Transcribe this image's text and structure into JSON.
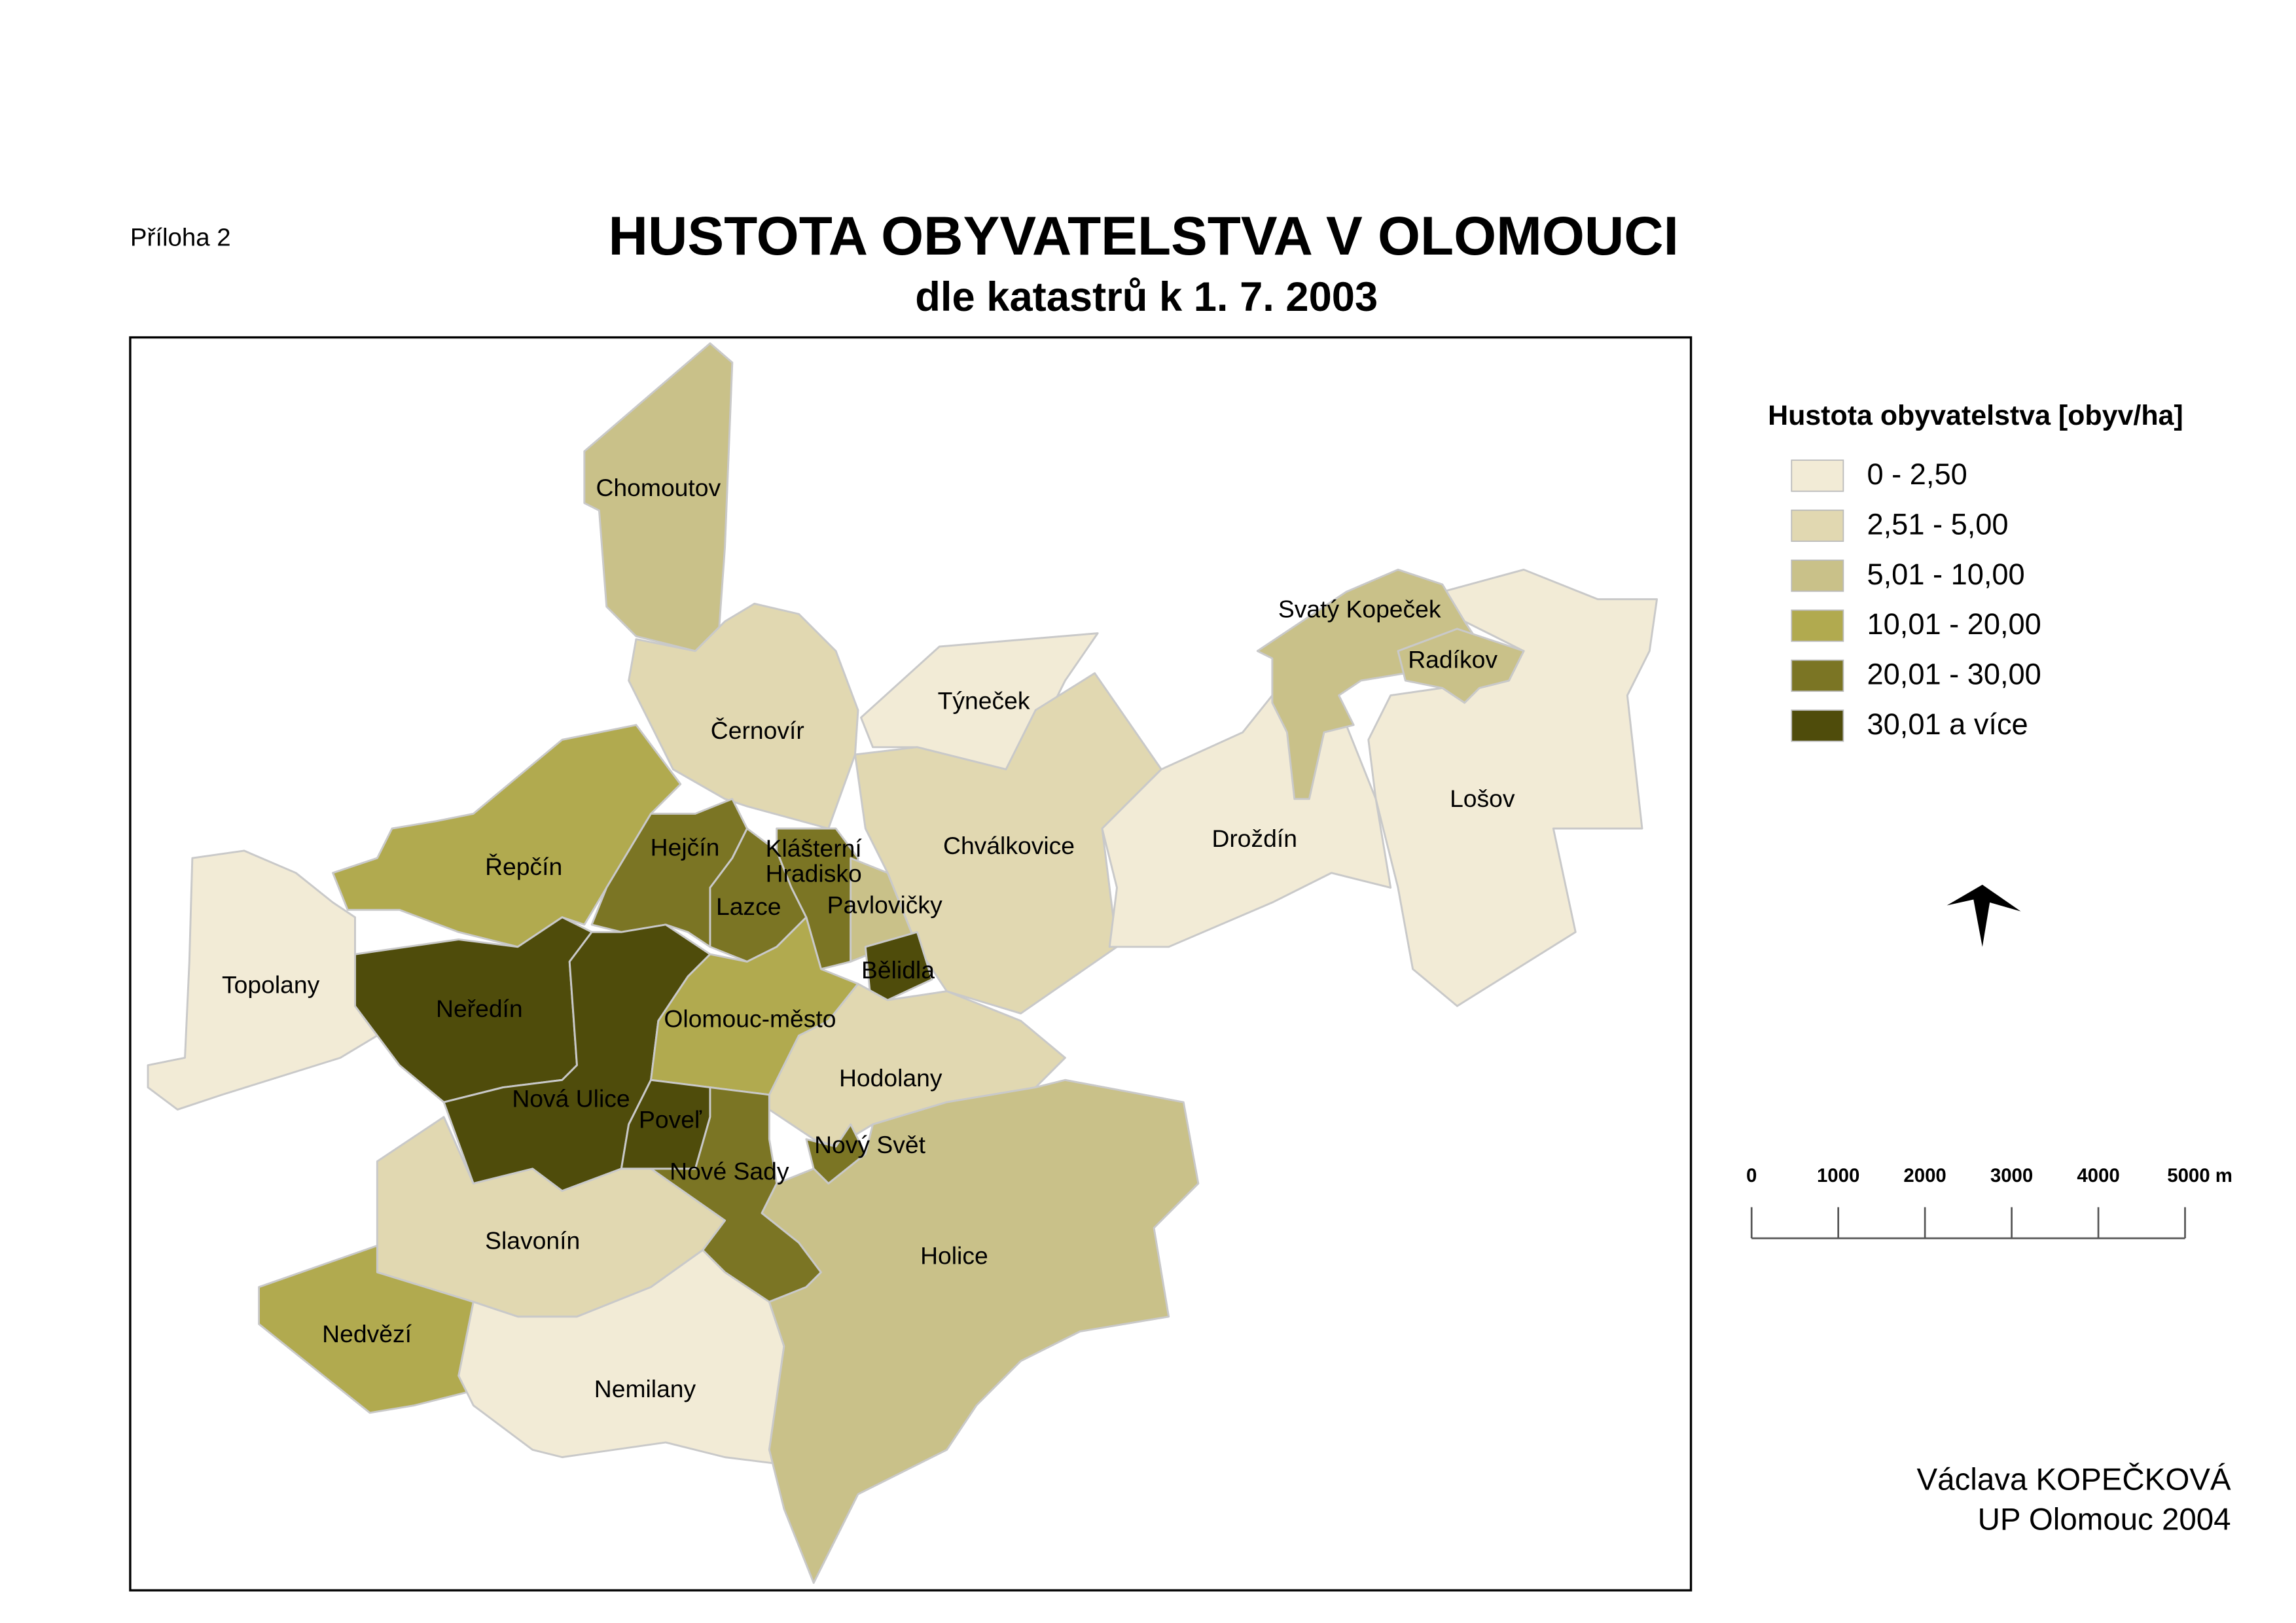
{
  "header": {
    "annex": "Příloha 2",
    "title": "HUSTOTA OBYVATELSTVA V OLOMOUCI",
    "subtitle": "dle katastrů k 1. 7. 2003"
  },
  "legend": {
    "title": "Hustota obyvatelstva [obyv/ha]",
    "classes": [
      {
        "label": "0 - 2,50",
        "color": "#f2ebd6"
      },
      {
        "label": "2,51 - 5,00",
        "color": "#e1d8b1"
      },
      {
        "label": "5,01 - 10,00",
        "color": "#c9c189"
      },
      {
        "label": "10,01 - 20,00",
        "color": "#b1aa4f"
      },
      {
        "label": "20,01 - 30,00",
        "color": "#7b7524"
      },
      {
        "label": "30,01 a více",
        "color": "#4f4c0b"
      }
    ]
  },
  "districts": [
    {
      "name": "Chomoutov",
      "class": 2
    },
    {
      "name": "Černovír",
      "class": 1
    },
    {
      "name": "Týneček",
      "class": 0
    },
    {
      "name": "Chválkovice",
      "class": 1
    },
    {
      "name": "Droždín",
      "class": 0
    },
    {
      "name": "Lošov",
      "class": 0
    },
    {
      "name": "Svatý Kopeček",
      "class": 2
    },
    {
      "name": "Radíkov",
      "class": 2
    },
    {
      "name": "Řepčín",
      "class": 3
    },
    {
      "name": "Hejčín",
      "class": 4
    },
    {
      "name": "Lazce",
      "class": 4
    },
    {
      "name": "Klášterní Hradisko",
      "class": 4
    },
    {
      "name": "Pavlovičky",
      "class": 2
    },
    {
      "name": "Bělidla",
      "class": 5
    },
    {
      "name": "Topolany",
      "class": 0
    },
    {
      "name": "Neředín",
      "class": 5
    },
    {
      "name": "Nová Ulice",
      "class": 5
    },
    {
      "name": "Olomouc-město",
      "class": 3
    },
    {
      "name": "Hodolany",
      "class": 1
    },
    {
      "name": "Poveľ",
      "class": 5
    },
    {
      "name": "Nové Sady",
      "class": 4
    },
    {
      "name": "Nový Svět",
      "class": 4
    },
    {
      "name": "Slavonín",
      "class": 1
    },
    {
      "name": "Nedvězí",
      "class": 3
    },
    {
      "name": "Nemilany",
      "class": 0
    },
    {
      "name": "Holice",
      "class": 2
    }
  ],
  "scale_bar": {
    "ticks": [
      0,
      1000,
      2000,
      3000,
      4000,
      {
        "value": 5000,
        "label": "5000 m"
      }
    ]
  },
  "author": {
    "name": "Václava KOPEČKOVÁ",
    "org": "UP Olomouc 2004"
  }
}
